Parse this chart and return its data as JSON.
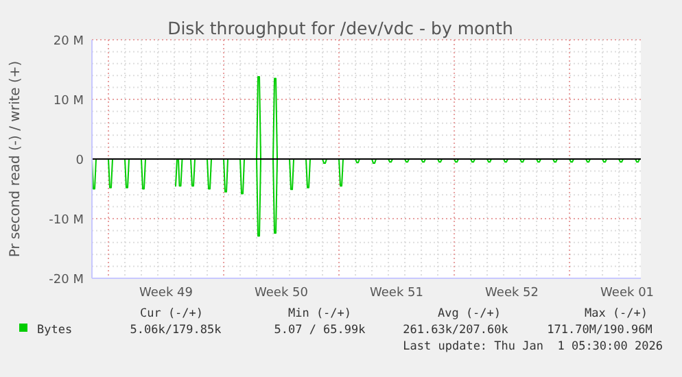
{
  "chart_data": {
    "type": "line",
    "title": "Disk throughput for /dev/vdc - by month",
    "ylabel": "Pr second read (-) / write (+)",
    "xlim": [
      "2025-11-30T00:00",
      "2026-01-02T07:55"
    ],
    "xticks": [
      {
        "value": "2025-12-04T12:00",
        "label": "Week 49"
      },
      {
        "value": "2025-12-11T12:00",
        "label": "Week 50"
      },
      {
        "value": "2025-12-18T12:00",
        "label": "Week 51"
      },
      {
        "value": "2025-12-25T12:00",
        "label": "Week 52"
      },
      {
        "value": "2026-01-01T12:00",
        "label": "Week 01"
      }
    ],
    "ylim": [
      -20,
      20
    ],
    "yticks": [
      {
        "value": -20,
        "label": "-20 M"
      },
      {
        "value": -10,
        "label": "-10 M"
      },
      {
        "value": 0,
        "label": "0"
      },
      {
        "value": 10,
        "label": "10 M"
      },
      {
        "value": 20,
        "label": "20 M"
      }
    ],
    "grid": true,
    "legend": "bottom left",
    "marker": "none",
    "line_style": "solid",
    "ref_lines": [
      {
        "axis": "y",
        "value": 0,
        "color": "#000000"
      }
    ],
    "series": [
      {
        "color": "#00cc00",
        "x": [
          "2025-11-30T00:00",
          "2025-11-30T02:00",
          "2025-11-30T04:00",
          "2025-11-30T06:00",
          "2025-12-01T00:00",
          "2025-12-01T02:00",
          "2025-12-01T04:00",
          "2025-12-01T06:00",
          "2025-12-02T00:00",
          "2025-12-02T02:00",
          "2025-12-02T04:00",
          "2025-12-02T06:00",
          "2025-12-03T00:00",
          "2025-12-03T02:00",
          "2025-12-03T04:00",
          "2025-12-03T06:00",
          "2025-12-04T00:00",
          "2025-12-04T12:00",
          "2025-12-05T01:00",
          "2025-12-05T02:00",
          "2025-12-05T04:00",
          "2025-12-05T06:00",
          "2025-12-05T07:30",
          "2025-12-05T09:30",
          "2025-12-05T11:30",
          "2025-12-06T00:00",
          "2025-12-06T02:00",
          "2025-12-06T04:00",
          "2025-12-06T06:00",
          "2025-12-07T00:00",
          "2025-12-07T02:00",
          "2025-12-07T04:00",
          "2025-12-07T06:00",
          "2025-12-08T00:00",
          "2025-12-08T02:00",
          "2025-12-08T04:00",
          "2025-12-08T06:00",
          "2025-12-09T00:00",
          "2025-12-09T02:00",
          "2025-12-09T04:00",
          "2025-12-09T06:00",
          "2025-12-10T00:00",
          "2025-12-10T02:00",
          "2025-12-10T04:00",
          "2025-12-10T06:00",
          "2025-12-11T00:00",
          "2025-12-11T02:00",
          "2025-12-11T04:00",
          "2025-12-11T06:00",
          "2025-12-12T00:00",
          "2025-12-12T02:00",
          "2025-12-12T04:00",
          "2025-12-12T06:00",
          "2025-12-13T00:00",
          "2025-12-13T02:00",
          "2025-12-13T04:00",
          "2025-12-13T06:00",
          "2025-12-14T00:00",
          "2025-12-14T02:00",
          "2025-12-14T04:00",
          "2025-12-14T06:00",
          "2025-12-15T00:00",
          "2025-12-15T02:00",
          "2025-12-15T04:00",
          "2025-12-15T06:00",
          "2025-12-16T00:00",
          "2025-12-16T02:00",
          "2025-12-16T04:00",
          "2025-12-16T06:00",
          "2025-12-17T00:00",
          "2025-12-17T02:00",
          "2025-12-17T04:00",
          "2025-12-17T06:00",
          "2025-12-18T00:00",
          "2025-12-18T02:00",
          "2025-12-18T04:00",
          "2025-12-18T06:00",
          "2025-12-19T00:00",
          "2025-12-19T02:00",
          "2025-12-19T04:00",
          "2025-12-19T06:00",
          "2025-12-20T00:00",
          "2025-12-20T02:00",
          "2025-12-20T04:00",
          "2025-12-20T06:00",
          "2025-12-21T00:00",
          "2025-12-21T02:00",
          "2025-12-21T04:00",
          "2025-12-21T06:00",
          "2025-12-22T00:00",
          "2025-12-22T02:00",
          "2025-12-22T04:00",
          "2025-12-22T06:00",
          "2025-12-23T00:00",
          "2025-12-23T02:00",
          "2025-12-23T04:00",
          "2025-12-23T06:00",
          "2025-12-24T00:00",
          "2025-12-24T02:00",
          "2025-12-24T04:00",
          "2025-12-24T06:00",
          "2025-12-25T00:00",
          "2025-12-25T02:00",
          "2025-12-25T04:00",
          "2025-12-25T06:00",
          "2025-12-26T00:00",
          "2025-12-26T02:00",
          "2025-12-26T04:00",
          "2025-12-26T06:00",
          "2025-12-27T00:00",
          "2025-12-27T02:00",
          "2025-12-27T04:00",
          "2025-12-27T06:00",
          "2025-12-28T00:00",
          "2025-12-28T02:00",
          "2025-12-28T04:00",
          "2025-12-28T06:00",
          "2025-12-29T00:00",
          "2025-12-29T02:00",
          "2025-12-29T04:00",
          "2025-12-29T06:00",
          "2025-12-30T00:00",
          "2025-12-30T02:00",
          "2025-12-30T04:00",
          "2025-12-30T06:00",
          "2025-12-31T00:00",
          "2025-12-31T02:00",
          "2025-12-31T04:00",
          "2025-12-31T06:00",
          "2026-01-01T00:00",
          "2026-01-01T02:00",
          "2026-01-01T04:00",
          "2026-01-01T06:00",
          "2026-01-02T00:00",
          "2026-01-02T02:00",
          "2026-01-02T04:00",
          "2026-01-02T06:00",
          "2026-01-02T07:55"
        ],
        "values": [
          0,
          -5.0,
          -5.0,
          0,
          0,
          -4.8,
          -4.8,
          0,
          0,
          -4.8,
          -4.8,
          0,
          0,
          -5.0,
          -5.0,
          0,
          0,
          null,
          -4.5,
          -4.5,
          0,
          0,
          -4.5,
          -4.5,
          0,
          0,
          -4.5,
          -4.5,
          0,
          0,
          -5.0,
          -5.0,
          0,
          0,
          -5.5,
          -5.5,
          0,
          0,
          -5.8,
          -5.8,
          0,
          0,
          -12.9,
          -12.9,
          0,
          0,
          -12.4,
          -12.4,
          0,
          0,
          -5.1,
          -5.1,
          0,
          0,
          -4.8,
          -4.8,
          0,
          0,
          -0.7,
          -0.7,
          0,
          0,
          -4.5,
          -4.5,
          0,
          0,
          -0.6,
          -0.6,
          0,
          0,
          -0.7,
          -0.7,
          0,
          0,
          -0.5,
          -0.5,
          0,
          0,
          -0.5,
          -0.5,
          0,
          0,
          -0.5,
          -0.5,
          0,
          0,
          -0.5,
          -0.5,
          0,
          0,
          -0.5,
          -0.5,
          0,
          0,
          -0.5,
          -0.5,
          0,
          0,
          -0.5,
          -0.5,
          0,
          0,
          -0.5,
          -0.5,
          0,
          0,
          -0.5,
          -0.5,
          0,
          0,
          -0.5,
          -0.5,
          0,
          0,
          -0.5,
          -0.5,
          0,
          0,
          -0.5,
          -0.5,
          0,
          0,
          -0.5,
          -0.5,
          0,
          0,
          -0.5,
          -0.5,
          0,
          0,
          -0.5,
          -0.5,
          0,
          0,
          -0.5,
          -0.5,
          0,
          0
        ]
      },
      {
        "name": "Bytes",
        "color": "#00cc00",
        "x": [
          "2025-12-10T00:00",
          "2025-12-10T02:00",
          "2025-12-10T04:00",
          "2025-12-10T06:00",
          "2025-12-10T12:00",
          "2025-12-11T00:00",
          "2025-12-11T02:00",
          "2025-12-11T04:00",
          "2025-12-11T06:00"
        ],
        "values": [
          0,
          13.8,
          13.8,
          0,
          null,
          0,
          13.5,
          13.5,
          0
        ]
      }
    ],
    "annotations": [
      "Cur (-/+)",
      "Min (-/+)",
      "Avg (-/+)",
      "Max (-/+)",
      "5.06k/179.85k",
      "5.07 / 65.99k",
      "261.63k/207.60k",
      "171.70M/190.96M",
      "Last update: Thu Jan  1 05:30:00 2026"
    ]
  }
}
